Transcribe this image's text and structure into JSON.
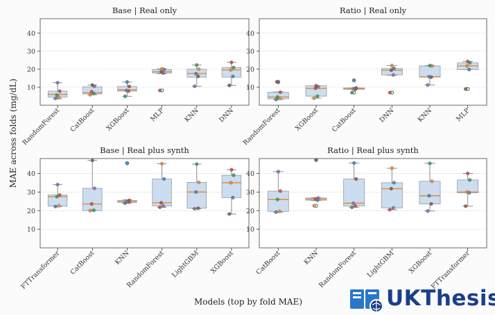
{
  "figure": {
    "ylabel": "MAE across folds (mg/dL)",
    "xlabel": "Models (top by fold MAE)"
  },
  "watermark": {
    "text": "UKThesis"
  },
  "colors": {
    "box_fill": "#c5d9ec",
    "box_edge": "#8f9cab",
    "median": "#e08a3c",
    "whisker": "#8a8a8a",
    "flier": "#2c6e49",
    "point_colors": [
      "#4a7fb5",
      "#e08a3c",
      "#3a9c5a",
      "#c94c4c",
      "#8a6bb1",
      "#8c5a44"
    ],
    "watermark": "#1c3f8c"
  },
  "chart_data": [
    {
      "type": "box",
      "title": "Base | Real only",
      "ylim": [
        0,
        48
      ],
      "yticks": [
        10,
        20,
        30,
        40
      ],
      "grid": "horizontal",
      "categories": [
        "RandomForest",
        "CatBoost",
        "XGBoost",
        "MLP",
        "KNN",
        "DNN"
      ],
      "boxes": [
        {
          "q1": 4.5,
          "median": 6.0,
          "q3": 7.8,
          "whislo": 3.5,
          "whishi": 12.5,
          "points": [
            3.8,
            4.5,
            5.6,
            7.8,
            12.5
          ]
        },
        {
          "q1": 6.2,
          "median": 7.0,
          "q3": 10.2,
          "whislo": 5.8,
          "whishi": 11.2,
          "points": [
            5.8,
            6.5,
            7.5,
            10.5,
            11.2
          ]
        },
        {
          "q1": 7.8,
          "median": 8.5,
          "q3": 10.4,
          "whislo": 4.9,
          "whishi": 12.9,
          "points": [
            4.9,
            7.8,
            8.2,
            10.4,
            12.9
          ]
        },
        {
          "q1": 17.8,
          "median": 18.6,
          "q3": 19.8,
          "whislo": 17.5,
          "whishi": 20.2,
          "points": [
            8.2,
            17.8,
            18.6,
            19.8,
            20.2
          ]
        },
        {
          "q1": 15.6,
          "median": 17.6,
          "q3": 20.0,
          "whislo": 10.5,
          "whishi": 22.3,
          "points": [
            10.5,
            16.0,
            17.5,
            20.0,
            22.3
          ]
        },
        {
          "q1": 15.6,
          "median": 19.6,
          "q3": 20.9,
          "whislo": 11.0,
          "whishi": 23.8,
          "points": [
            11.0,
            16.0,
            19.6,
            20.9,
            23.8
          ]
        }
      ]
    },
    {
      "type": "box",
      "title": "Ratio | Real only",
      "ylim": [
        0,
        48
      ],
      "yticks": [
        10,
        20,
        30,
        40
      ],
      "grid": "horizontal",
      "categories": [
        "RandomForest",
        "XGBoost",
        "CatBoost",
        "DNN",
        "KNN",
        "MLP"
      ],
      "boxes": [
        {
          "q1": 3.5,
          "median": 4.6,
          "q3": 7.2,
          "whislo": 3.2,
          "whishi": 7.4,
          "points": [
            3.2,
            3.8,
            4.6,
            7.2,
            12.8,
            13.0
          ]
        },
        {
          "q1": 5.0,
          "median": 9.4,
          "q3": 10.8,
          "whislo": 3.9,
          "whishi": 10.8,
          "points": [
            3.9,
            5.0,
            9.4,
            10.2,
            10.8
          ]
        },
        {
          "q1": 8.8,
          "median": 9.2,
          "q3": 9.6,
          "whislo": 8.8,
          "whishi": 9.6,
          "points": [
            7.0,
            8.8,
            9.2,
            9.6,
            13.8
          ]
        },
        {
          "q1": 16.8,
          "median": 19.4,
          "q3": 20.4,
          "whislo": 16.6,
          "whishi": 22.0,
          "points": [
            7.0,
            16.8,
            19.4,
            20.4,
            22.0
          ]
        },
        {
          "q1": 15.6,
          "median": 15.8,
          "q3": 21.8,
          "whislo": 11.2,
          "whishi": 22.0,
          "points": [
            11.2,
            15.6,
            15.8,
            21.8,
            22.0
          ]
        },
        {
          "q1": 19.8,
          "median": 21.8,
          "q3": 23.5,
          "whislo": 19.8,
          "whishi": 24.3,
          "points": [
            9.0,
            19.8,
            21.8,
            23.5,
            24.3
          ]
        }
      ]
    },
    {
      "type": "box",
      "title": "Base | Real plus synth",
      "ylim": [
        0,
        48
      ],
      "yticks": [
        10,
        20,
        30,
        40
      ],
      "grid": "horizontal",
      "categories": [
        "FTTransformer",
        "CatBoost",
        "KNN",
        "RandomForest",
        "LightGBM",
        "XGBoost"
      ],
      "boxes": [
        {
          "q1": 22.4,
          "median": 27.5,
          "q3": 28.4,
          "whislo": 22.2,
          "whishi": 34.0,
          "points": [
            22.2,
            22.6,
            27.5,
            28.4,
            34.0
          ]
        },
        {
          "q1": 20.0,
          "median": 23.6,
          "q3": 32.0,
          "whislo": 20.0,
          "whishi": 47.0,
          "points": [
            20.0,
            20.2,
            23.6,
            32.0,
            47.0
          ]
        },
        {
          "q1": 24.4,
          "median": 24.9,
          "q3": 25.5,
          "whislo": 24.0,
          "whishi": 25.8,
          "points": [
            24.0,
            24.6,
            24.9,
            25.5,
            45.5
          ]
        },
        {
          "q1": 22.5,
          "median": 24.2,
          "q3": 37.0,
          "whislo": 21.8,
          "whishi": 45.2,
          "points": [
            21.8,
            22.5,
            24.2,
            37.0,
            45.2
          ]
        },
        {
          "q1": 21.3,
          "median": 30.0,
          "q3": 35.2,
          "whislo": 21.0,
          "whishi": 45.0,
          "points": [
            21.0,
            21.3,
            30.0,
            35.2,
            45.0
          ]
        },
        {
          "q1": 27.0,
          "median": 35.0,
          "q3": 39.0,
          "whislo": 18.2,
          "whishi": 42.0,
          "points": [
            18.2,
            27.0,
            35.0,
            39.0,
            42.0
          ]
        }
      ]
    },
    {
      "type": "box",
      "title": "Ratio | Real plus synth",
      "ylim": [
        0,
        48
      ],
      "yticks": [
        10,
        20,
        30,
        40
      ],
      "grid": "horizontal",
      "categories": [
        "CatBoost",
        "KNN",
        "RandomForest",
        "LightGBM",
        "XGBoost",
        "FTTransformer"
      ],
      "boxes": [
        {
          "q1": 19.6,
          "median": 26.0,
          "q3": 30.5,
          "whislo": 19.2,
          "whishi": 41.0,
          "points": [
            19.2,
            19.6,
            26.0,
            30.5,
            41.0
          ]
        },
        {
          "q1": 25.6,
          "median": 26.2,
          "q3": 26.8,
          "whislo": 25.4,
          "whishi": 27.0,
          "points": [
            22.6,
            25.6,
            26.2,
            26.8,
            47.2
          ]
        },
        {
          "q1": 22.5,
          "median": 24.0,
          "q3": 37.0,
          "whislo": 21.8,
          "whishi": 45.6,
          "points": [
            21.8,
            22.5,
            24.0,
            37.0,
            45.6
          ]
        },
        {
          "q1": 21.5,
          "median": 31.8,
          "q3": 35.0,
          "whislo": 20.5,
          "whishi": 42.8,
          "points": [
            20.5,
            21.5,
            31.8,
            35.0,
            42.8
          ]
        },
        {
          "q1": 23.6,
          "median": 28.0,
          "q3": 35.8,
          "whislo": 19.8,
          "whishi": 45.4,
          "points": [
            19.8,
            23.6,
            28.0,
            35.8,
            45.4
          ]
        },
        {
          "q1": 29.6,
          "median": 30.0,
          "q3": 36.5,
          "whislo": 22.4,
          "whishi": 40.0,
          "points": [
            22.4,
            29.6,
            30.0,
            36.5,
            40.0
          ]
        }
      ]
    }
  ]
}
